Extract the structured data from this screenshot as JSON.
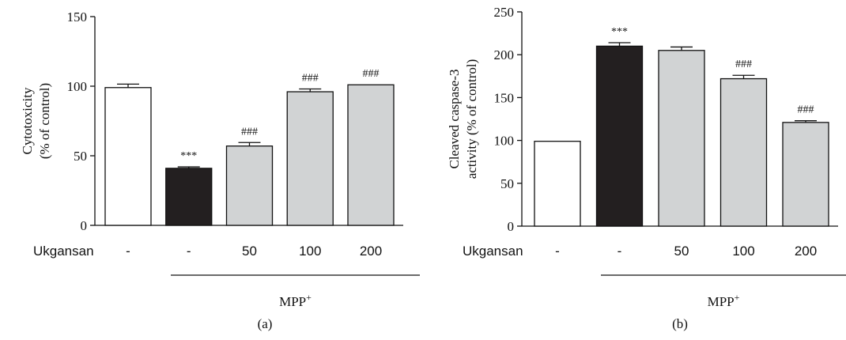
{
  "colors": {
    "control": "#ffffff",
    "mpp": "#231f20",
    "treated": "#d1d3d4",
    "stroke": "#111111"
  },
  "chart_data": [
    {
      "type": "bar",
      "panel_label": "(a)",
      "ylabel_line1": "Cytotoxicity",
      "ylabel_line2": "(% of control)",
      "ylim": [
        0,
        150
      ],
      "yticks": [
        "0",
        "50",
        "100",
        "150"
      ],
      "row_label": "Ukgansan",
      "categories": [
        "-",
        "-",
        "50",
        "100",
        "200"
      ],
      "values": [
        99,
        41,
        57,
        96,
        101
      ],
      "errors": [
        2.5,
        1,
        2.5,
        2,
        0
      ],
      "annotations": [
        "",
        "***",
        "###",
        "###",
        "###"
      ],
      "fill_keys": [
        "control",
        "mpp",
        "treated",
        "treated",
        "treated"
      ],
      "group_label": "MPP",
      "group_label_sup": "+"
    },
    {
      "type": "bar",
      "panel_label": "(b)",
      "ylabel_line1": "Cleaved caspase-3",
      "ylabel_line2": "activity (% of control)",
      "ylim": [
        0,
        250
      ],
      "yticks": [
        "0",
        "50",
        "100",
        "150",
        "200",
        "250"
      ],
      "row_label": "Ukgansan",
      "categories": [
        "-",
        "-",
        "50",
        "100",
        "200"
      ],
      "values": [
        99,
        210,
        205,
        172,
        121
      ],
      "errors": [
        0,
        4,
        4,
        4,
        2
      ],
      "annotations": [
        "",
        "***",
        "",
        "###",
        "###"
      ],
      "fill_keys": [
        "control",
        "mpp",
        "treated",
        "treated",
        "treated"
      ],
      "group_label": "MPP",
      "group_label_sup": "+"
    }
  ]
}
